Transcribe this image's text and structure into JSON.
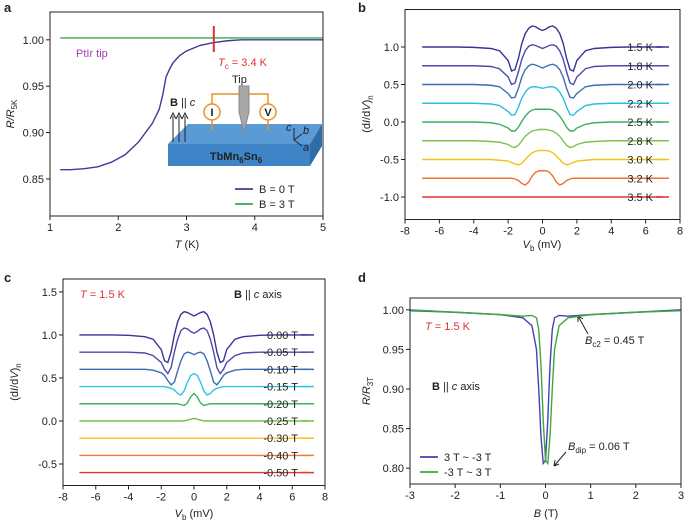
{
  "chart_data": [
    {
      "panel": "a",
      "type": "line",
      "xlabel": [
        "T",
        " (K)"
      ],
      "ylabel": [
        "R/R",
        "5K"
      ],
      "xlim": [
        1,
        5
      ],
      "ylim": [
        0.81,
        1.03
      ],
      "xticks": [
        1,
        2,
        3,
        4,
        5
      ],
      "yticks": [
        0.85,
        {
          "value": 0.9,
          "label": "0.90"
        },
        0.95,
        {
          "value": 1,
          "label": "1.00"
        }
      ],
      "legend": "lower right",
      "tc": 3.4,
      "annotations": {
        "tip_label": "PtIr tip",
        "tc_label": [
          "T",
          "c",
          " = 3.4 K"
        ],
        "inset": {
          "tip": "Tip",
          "field": [
            "B",
            " || ",
            "c"
          ],
          "sample": [
            "TbMn",
            "6",
            "Sn",
            "6"
          ],
          "current": "I",
          "voltage": "V",
          "axes": [
            "c",
            "b",
            "a"
          ]
        }
      },
      "series": [
        {
          "name": "B = 0 T",
          "color": "#3b3b9a",
          "x": [
            1.15,
            1.3,
            1.5,
            1.7,
            1.9,
            2.1,
            2.3,
            2.5,
            2.6,
            2.65,
            2.7,
            2.75,
            2.8,
            2.9,
            3.0,
            3.2,
            3.4,
            3.6,
            3.8,
            4.0,
            4.5,
            5.0
          ],
          "values": [
            0.86,
            0.86,
            0.861,
            0.863,
            0.868,
            0.876,
            0.89,
            0.91,
            0.925,
            0.94,
            0.96,
            0.968,
            0.975,
            0.983,
            0.988,
            0.994,
            0.997,
            0.999,
            1.0,
            1.0,
            1.0,
            1.0
          ]
        },
        {
          "name": "B = 3 T",
          "color": "#3aa845",
          "x": [
            1.15,
            2,
            3,
            4,
            5
          ],
          "values": [
            1.002,
            1.002,
            1.002,
            1.002,
            1.002
          ]
        }
      ]
    },
    {
      "panel": "b",
      "type": "line",
      "xlabel": [
        "V",
        "b",
        " (mV)"
      ],
      "ylabel": [
        "(d",
        "I",
        "/d",
        "V",
        ")",
        "n"
      ],
      "xlim": [
        -8,
        8
      ],
      "ylim": [
        -1.3,
        1.5
      ],
      "xticks": [
        -8,
        -6,
        -4,
        -2,
        0,
        2,
        4,
        6,
        8
      ],
      "yticks": [
        {
          "value": -1,
          "label": "-1.0"
        },
        -0.5,
        {
          "value": 0,
          "label": "0.0"
        },
        0.5,
        {
          "value": 1,
          "label": "1.0"
        }
      ],
      "legend": "right",
      "x": [
        -7,
        -6,
        -5,
        -4,
        -3,
        -2.5,
        -2,
        -1.8,
        -1.6,
        -1.4,
        -1.2,
        -1,
        -0.8,
        -0.6,
        -0.4,
        -0.2,
        0,
        0.2,
        0.4,
        0.6,
        0.8,
        1,
        1.2,
        1.4,
        1.6,
        1.8,
        2,
        2.5,
        3,
        4,
        5,
        6,
        7
      ],
      "series": [
        {
          "name": "1.5 K",
          "color": "#3a3594",
          "values": [
            1.0,
            1.0,
            1.0,
            0.995,
            0.98,
            0.95,
            0.82,
            0.68,
            0.7,
            0.85,
            1.05,
            1.18,
            1.25,
            1.28,
            1.27,
            1.24,
            1.22,
            1.24,
            1.27,
            1.28,
            1.25,
            1.18,
            1.05,
            0.85,
            0.7,
            0.68,
            0.82,
            0.95,
            0.98,
            0.995,
            1.0,
            1.0,
            1.0
          ]
        },
        {
          "name": "1.8 K",
          "color": "#4a4aa8",
          "values": [
            0.75,
            0.75,
            0.75,
            0.75,
            0.74,
            0.71,
            0.6,
            0.5,
            0.52,
            0.67,
            0.84,
            0.95,
            1.01,
            1.03,
            1.02,
            1.0,
            0.98,
            1.0,
            1.02,
            1.03,
            1.01,
            0.95,
            0.84,
            0.67,
            0.52,
            0.5,
            0.6,
            0.71,
            0.74,
            0.75,
            0.75,
            0.75,
            0.75
          ]
        },
        {
          "name": "2.0 K",
          "color": "#3e6db5",
          "values": [
            0.5,
            0.5,
            0.5,
            0.5,
            0.49,
            0.47,
            0.38,
            0.32,
            0.33,
            0.45,
            0.6,
            0.7,
            0.75,
            0.77,
            0.76,
            0.74,
            0.72,
            0.74,
            0.76,
            0.77,
            0.75,
            0.7,
            0.6,
            0.45,
            0.33,
            0.32,
            0.38,
            0.47,
            0.49,
            0.5,
            0.5,
            0.5,
            0.5
          ]
        },
        {
          "name": "2.2 K",
          "color": "#2bbde0",
          "values": [
            0.25,
            0.25,
            0.25,
            0.25,
            0.24,
            0.22,
            0.14,
            0.09,
            0.1,
            0.2,
            0.32,
            0.4,
            0.45,
            0.47,
            0.47,
            0.46,
            0.45,
            0.46,
            0.47,
            0.47,
            0.45,
            0.4,
            0.32,
            0.2,
            0.1,
            0.09,
            0.14,
            0.22,
            0.24,
            0.25,
            0.25,
            0.25,
            0.25
          ]
        },
        {
          "name": "2.5 K",
          "color": "#3cb060",
          "values": [
            0,
            0,
            0,
            0,
            -0.01,
            -0.03,
            -0.08,
            -0.12,
            -0.12,
            -0.07,
            0.01,
            0.08,
            0.13,
            0.16,
            0.17,
            0.17,
            0.17,
            0.17,
            0.17,
            0.16,
            0.13,
            0.08,
            0.01,
            -0.07,
            -0.12,
            -0.12,
            -0.08,
            -0.03,
            -0.01,
            0,
            0,
            0,
            0
          ]
        },
        {
          "name": "2.8 K",
          "color": "#7cc24a",
          "values": [
            -0.25,
            -0.25,
            -0.25,
            -0.25,
            -0.26,
            -0.27,
            -0.3,
            -0.33,
            -0.34,
            -0.31,
            -0.25,
            -0.19,
            -0.15,
            -0.12,
            -0.11,
            -0.1,
            -0.1,
            -0.1,
            -0.11,
            -0.12,
            -0.15,
            -0.19,
            -0.25,
            -0.31,
            -0.34,
            -0.33,
            -0.3,
            -0.27,
            -0.26,
            -0.25,
            -0.25,
            -0.25,
            -0.25
          ]
        },
        {
          "name": "3.0 K",
          "color": "#f2c21a",
          "values": [
            -0.5,
            -0.5,
            -0.5,
            -0.5,
            -0.5,
            -0.51,
            -0.52,
            -0.54,
            -0.56,
            -0.57,
            -0.55,
            -0.5,
            -0.45,
            -0.41,
            -0.39,
            -0.38,
            -0.38,
            -0.38,
            -0.39,
            -0.41,
            -0.45,
            -0.5,
            -0.55,
            -0.57,
            -0.56,
            -0.54,
            -0.52,
            -0.51,
            -0.5,
            -0.5,
            -0.5,
            -0.5,
            -0.5
          ]
        },
        {
          "name": "3.2 K",
          "color": "#f07030",
          "values": [
            -0.75,
            -0.75,
            -0.75,
            -0.75,
            -0.75,
            -0.75,
            -0.75,
            -0.75,
            -0.76,
            -0.78,
            -0.82,
            -0.84,
            -0.8,
            -0.72,
            -0.67,
            -0.65,
            -0.65,
            -0.65,
            -0.67,
            -0.72,
            -0.8,
            -0.84,
            -0.82,
            -0.78,
            -0.76,
            -0.75,
            -0.75,
            -0.75,
            -0.75,
            -0.75,
            -0.75,
            -0.75,
            -0.75
          ]
        },
        {
          "name": "3.5 K",
          "color": "#e03030",
          "values": [
            -1,
            -1,
            -1,
            -1,
            -1,
            -1,
            -1,
            -1,
            -1,
            -1,
            -1,
            -1,
            -1,
            -1,
            -1,
            -1,
            -1,
            -1,
            -1,
            -1,
            -1,
            -1,
            -1,
            -1,
            -1,
            -1,
            -1,
            -1,
            -1,
            -1,
            -1,
            -1,
            -1
          ]
        }
      ]
    },
    {
      "panel": "c",
      "type": "line",
      "xlabel": [
        "V",
        "b",
        " (mV)"
      ],
      "ylabel": [
        "(d",
        "I",
        "/d",
        "V",
        ")",
        "n"
      ],
      "xlim": [
        -8,
        8
      ],
      "ylim": [
        -0.75,
        1.65
      ],
      "xticks": [
        -8,
        -6,
        -4,
        -2,
        0,
        2,
        4,
        6,
        8
      ],
      "yticks": [
        -0.5,
        {
          "value": 0,
          "label": "0.0"
        },
        0.5,
        {
          "value": 1,
          "label": "1.0"
        },
        1.5
      ],
      "legend": "right",
      "annotations": {
        "temperature": [
          "T",
          " = 1.5 K"
        ],
        "field": [
          "B",
          " || ",
          "c",
          " axis"
        ]
      },
      "x": [
        -7,
        -6,
        -5,
        -4,
        -3,
        -2.5,
        -2,
        -1.8,
        -1.6,
        -1.4,
        -1.2,
        -1,
        -0.8,
        -0.6,
        -0.4,
        -0.2,
        0,
        0.2,
        0.4,
        0.6,
        0.8,
        1,
        1.2,
        1.4,
        1.6,
        1.8,
        2,
        2.5,
        3,
        4,
        5,
        6,
        7
      ],
      "series": [
        {
          "name": "0.00 T",
          "color": "#3a3594",
          "values": [
            1.0,
            1.0,
            1.0,
            0.995,
            0.98,
            0.95,
            0.83,
            0.7,
            0.68,
            0.8,
            1.0,
            1.15,
            1.24,
            1.27,
            1.26,
            1.24,
            1.22,
            1.24,
            1.26,
            1.27,
            1.24,
            1.15,
            1.0,
            0.8,
            0.68,
            0.7,
            0.83,
            0.95,
            0.98,
            0.995,
            1.0,
            1.0,
            1.0
          ]
        },
        {
          "name": "-0.05 T",
          "color": "#4f4aa8",
          "values": [
            0.8,
            0.8,
            0.8,
            0.8,
            0.79,
            0.76,
            0.68,
            0.6,
            0.55,
            0.62,
            0.8,
            0.95,
            1.05,
            1.08,
            1.07,
            1.04,
            1.02,
            1.04,
            1.07,
            1.08,
            1.05,
            0.95,
            0.8,
            0.62,
            0.55,
            0.6,
            0.68,
            0.76,
            0.79,
            0.8,
            0.8,
            0.8,
            0.8
          ]
        },
        {
          "name": "-0.10 T",
          "color": "#3b6cb0",
          "values": [
            0.6,
            0.6,
            0.6,
            0.6,
            0.6,
            0.59,
            0.56,
            0.53,
            0.47,
            0.42,
            0.45,
            0.58,
            0.7,
            0.78,
            0.8,
            0.79,
            0.77,
            0.79,
            0.8,
            0.78,
            0.7,
            0.58,
            0.45,
            0.42,
            0.47,
            0.53,
            0.56,
            0.59,
            0.6,
            0.6,
            0.6,
            0.6,
            0.6
          ]
        },
        {
          "name": "-0.15 T",
          "color": "#2ec4e6",
          "values": [
            0.4,
            0.4,
            0.4,
            0.4,
            0.4,
            0.4,
            0.4,
            0.4,
            0.39,
            0.38,
            0.36,
            0.32,
            0.3,
            0.35,
            0.45,
            0.53,
            0.55,
            0.53,
            0.45,
            0.35,
            0.3,
            0.32,
            0.36,
            0.38,
            0.39,
            0.4,
            0.4,
            0.4,
            0.4,
            0.4,
            0.4,
            0.4,
            0.4
          ]
        },
        {
          "name": "-0.20 T",
          "color": "#3bb060",
          "values": [
            0.2,
            0.2,
            0.2,
            0.2,
            0.2,
            0.2,
            0.2,
            0.2,
            0.2,
            0.2,
            0.2,
            0.2,
            0.19,
            0.18,
            0.21,
            0.28,
            0.32,
            0.28,
            0.21,
            0.18,
            0.19,
            0.2,
            0.2,
            0.2,
            0.2,
            0.2,
            0.2,
            0.2,
            0.2,
            0.2,
            0.2,
            0.2,
            0.2
          ]
        },
        {
          "name": "-0.25 T",
          "color": "#6cbf40",
          "values": [
            0,
            0,
            0,
            0,
            0,
            0,
            0,
            0,
            0,
            0,
            0,
            0,
            0,
            0,
            0.01,
            0.02,
            0.03,
            0.02,
            0.01,
            0,
            0,
            0,
            0,
            0,
            0,
            0,
            0,
            0,
            0,
            0,
            0,
            0,
            0
          ]
        },
        {
          "name": "-0.30 T",
          "color": "#f4c020",
          "values": [
            -0.2,
            -0.2,
            -0.2,
            -0.2,
            -0.2,
            -0.2,
            -0.2,
            -0.2,
            -0.2,
            -0.2,
            -0.2,
            -0.2,
            -0.2,
            -0.2,
            -0.2,
            -0.2,
            -0.2,
            -0.2,
            -0.2,
            -0.2,
            -0.2,
            -0.2,
            -0.2,
            -0.2,
            -0.2,
            -0.2,
            -0.2,
            -0.2,
            -0.2,
            -0.2,
            -0.2,
            -0.2,
            -0.2
          ]
        },
        {
          "name": "-0.40 T",
          "color": "#f07a30",
          "values": [
            -0.4,
            -0.4,
            -0.4,
            -0.4,
            -0.4,
            -0.4,
            -0.4,
            -0.4,
            -0.4,
            -0.4,
            -0.4,
            -0.4,
            -0.4,
            -0.4,
            -0.4,
            -0.4,
            -0.4,
            -0.4,
            -0.4,
            -0.4,
            -0.4,
            -0.4,
            -0.4,
            -0.4,
            -0.4,
            -0.4,
            -0.4,
            -0.4,
            -0.4,
            -0.4,
            -0.4,
            -0.4,
            -0.4
          ]
        },
        {
          "name": "-0.50 T",
          "color": "#e03a2a",
          "values": [
            -0.6,
            -0.6,
            -0.6,
            -0.6,
            -0.6,
            -0.6,
            -0.6,
            -0.6,
            -0.6,
            -0.6,
            -0.6,
            -0.6,
            -0.6,
            -0.6,
            -0.6,
            -0.6,
            -0.6,
            -0.6,
            -0.6,
            -0.6,
            -0.6,
            -0.6,
            -0.6,
            -0.6,
            -0.6,
            -0.6,
            -0.6,
            -0.6,
            -0.6,
            -0.6,
            -0.6,
            -0.6,
            -0.6
          ]
        }
      ]
    },
    {
      "panel": "d",
      "type": "line",
      "xlabel": [
        "B",
        " (T)"
      ],
      "ylabel": [
        "R/R",
        "3T"
      ],
      "xlim": [
        -3,
        3
      ],
      "ylim": [
        0.78,
        1.015
      ],
      "xticks": [
        -3,
        -2,
        -1,
        0,
        1,
        2,
        3
      ],
      "yticks": [
        {
          "value": 0.8,
          "label": "0.80"
        },
        0.85,
        {
          "value": 0.9,
          "label": "0.90"
        },
        0.95,
        {
          "value": 1,
          "label": "1.00"
        }
      ],
      "legend": "lower left",
      "annotations": {
        "temperature": [
          "T",
          " = 1.5 K"
        ],
        "field": [
          "B",
          " || ",
          "c",
          " axis"
        ],
        "bc2": [
          "B",
          "c2",
          " = 0.45 T"
        ],
        "bdip": [
          "B",
          "dip",
          " = 0.06 T"
        ]
      },
      "x": [
        -3,
        -2,
        -1,
        -0.5,
        -0.3,
        -0.2,
        -0.15,
        -0.1,
        -0.05,
        0,
        0.05,
        0.1,
        0.15,
        0.2,
        0.3,
        0.5,
        1,
        2,
        3
      ],
      "series": [
        {
          "name": "3 T ~ -3 T",
          "color": "#4a3fb0",
          "values": [
            0.999,
            0.997,
            0.994,
            0.99,
            0.98,
            0.95,
            0.9,
            0.84,
            0.806,
            0.81,
            0.86,
            0.93,
            0.975,
            0.99,
            0.993,
            0.992,
            0.994,
            0.997,
            1.0
          ]
        },
        {
          "name": "-3 T ~ 3 T",
          "color": "#3aaa3a",
          "values": [
            1.0,
            0.997,
            0.994,
            0.992,
            0.993,
            0.99,
            0.975,
            0.93,
            0.86,
            0.81,
            0.806,
            0.84,
            0.9,
            0.95,
            0.98,
            0.99,
            0.994,
            0.997,
            0.999
          ]
        }
      ]
    }
  ]
}
